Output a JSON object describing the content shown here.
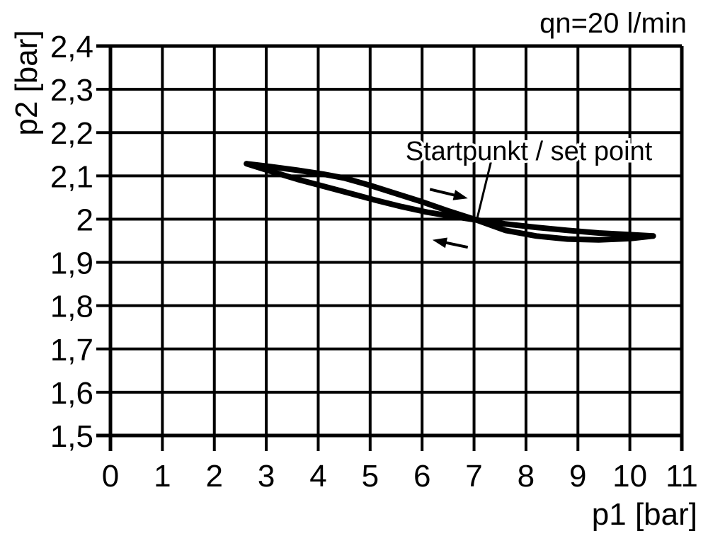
{
  "chart_data": {
    "type": "line",
    "title": "qn=20 l/min",
    "xlabel": "p1 [bar]",
    "ylabel": "p2 [bar]",
    "xlim": [
      0,
      11
    ],
    "ylim": [
      1.5,
      2.4
    ],
    "grid": true,
    "legend_position": "none",
    "background_color": "#ffffff",
    "line_color": "#000000",
    "x_ticks": {
      "values": [
        0,
        1,
        2,
        3,
        4,
        5,
        6,
        7,
        8,
        9,
        10,
        11
      ],
      "labels": [
        "0",
        "1",
        "2",
        "3",
        "4",
        "5",
        "6",
        "7",
        "8",
        "9",
        "10",
        "11"
      ]
    },
    "y_ticks": {
      "values": [
        2.4,
        2.3,
        2.2,
        2.1,
        2.0,
        1.9,
        1.8,
        1.7,
        1.6,
        1.5
      ],
      "labels": [
        "2,4",
        "2,3",
        "2,2",
        "2,1",
        "2",
        "1,9",
        "1,8",
        "1,7",
        "1,6",
        "1,5"
      ]
    },
    "series": [
      {
        "name": "forward-increasing-p1",
        "direction": "increasing p1",
        "points": [
          [
            2.62,
            2.128
          ],
          [
            3.1,
            2.121
          ],
          [
            3.6,
            2.113
          ],
          [
            4.1,
            2.104
          ],
          [
            4.5,
            2.095
          ],
          [
            5.0,
            2.078
          ],
          [
            5.5,
            2.059
          ],
          [
            6.0,
            2.04
          ],
          [
            6.5,
            2.019
          ],
          [
            7.05,
            1.998
          ],
          [
            7.6,
            1.974
          ],
          [
            8.2,
            1.961
          ],
          [
            8.8,
            1.954
          ],
          [
            9.4,
            1.952
          ],
          [
            10.0,
            1.955
          ],
          [
            10.45,
            1.961
          ]
        ]
      },
      {
        "name": "return-decreasing-p1",
        "direction": "decreasing p1",
        "points": [
          [
            10.45,
            1.961
          ],
          [
            10.0,
            1.964
          ],
          [
            9.4,
            1.968
          ],
          [
            8.8,
            1.974
          ],
          [
            8.2,
            1.981
          ],
          [
            7.6,
            1.989
          ],
          [
            7.05,
            1.998
          ],
          [
            6.6,
            2.006
          ],
          [
            6.1,
            2.016
          ],
          [
            5.6,
            2.029
          ],
          [
            5.1,
            2.044
          ],
          [
            4.6,
            2.06
          ],
          [
            4.1,
            2.076
          ],
          [
            3.6,
            2.092
          ],
          [
            3.1,
            2.11
          ],
          [
            2.62,
            2.128
          ]
        ]
      }
    ],
    "set_point": {
      "p1": 7.05,
      "p2": 2.0
    },
    "annotation": {
      "text": "Startpunkt / set point"
    },
    "arrows": [
      {
        "name": "forward-direction-arrow",
        "from": [
          6.15,
          2.069
        ],
        "to": [
          6.88,
          2.048
        ]
      },
      {
        "name": "return-direction-arrow",
        "from": [
          6.88,
          1.935
        ],
        "to": [
          6.2,
          1.952
        ]
      }
    ]
  }
}
